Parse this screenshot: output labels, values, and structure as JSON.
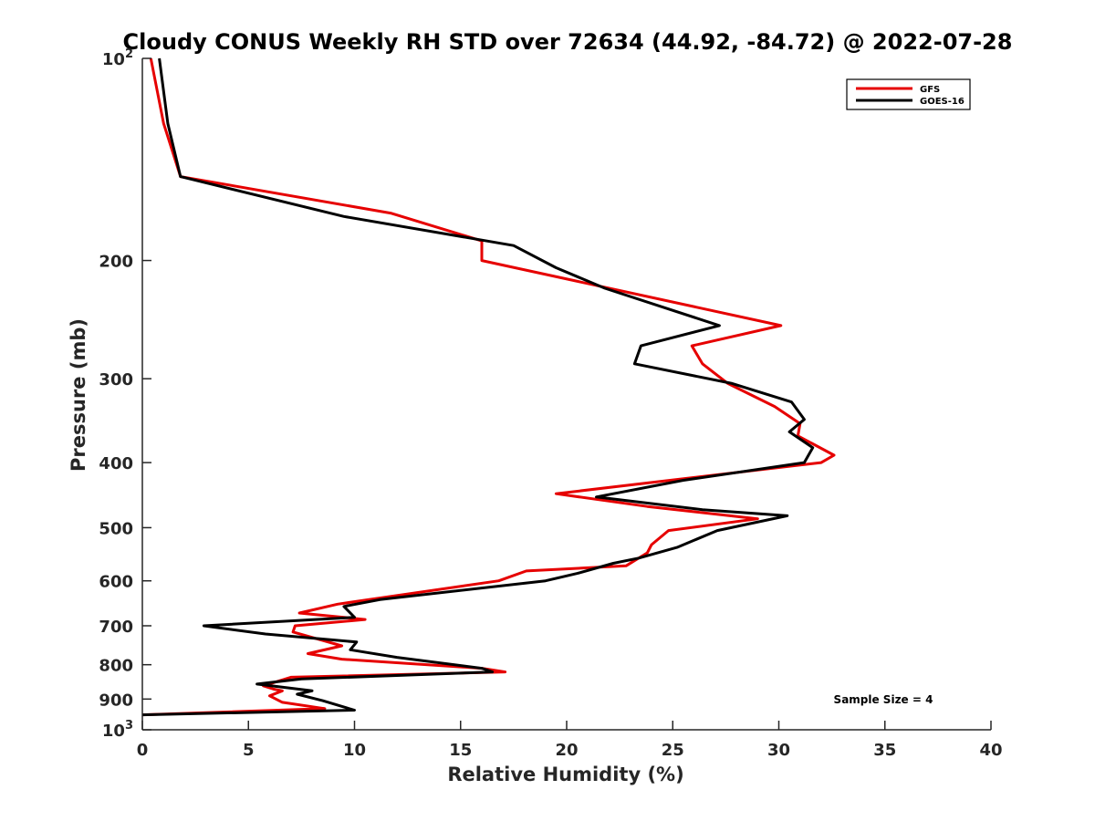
{
  "chart_data": {
    "type": "line",
    "title": "Cloudy CONUS Weekly RH STD over 72634 (44.92, -84.72) @ 2022-07-28",
    "xlabel": "Relative Humidity (%)",
    "ylabel": "Pressure (mb)",
    "xlim": [
      0,
      40
    ],
    "ylim": [
      100,
      1000
    ],
    "y_scale": "log",
    "y_reversed": true,
    "grid": false,
    "legend_position": "top-right",
    "x_ticks": [
      0,
      5,
      10,
      15,
      20,
      25,
      30,
      35,
      40
    ],
    "x_tick_labels": [
      "0",
      "5",
      "10",
      "15",
      "20",
      "25",
      "30",
      "35",
      "40"
    ],
    "y_ticks": [
      100,
      200,
      300,
      400,
      500,
      600,
      700,
      800,
      900,
      1000
    ],
    "y_tick_labels": [
      {
        "base": "10",
        "exp": "2"
      },
      {
        "base": "200",
        "exp": ""
      },
      {
        "base": "300",
        "exp": ""
      },
      {
        "base": "400",
        "exp": ""
      },
      {
        "base": "500",
        "exp": ""
      },
      {
        "base": "600",
        "exp": ""
      },
      {
        "base": "700",
        "exp": ""
      },
      {
        "base": "800",
        "exp": ""
      },
      {
        "base": "900",
        "exp": ""
      },
      {
        "base": "10",
        "exp": "3"
      }
    ],
    "annotation": "Sample Size = 4",
    "series": [
      {
        "name": "GFS",
        "color": "#e60000",
        "points": [
          [
            0.4,
            100
          ],
          [
            1.0,
            125
          ],
          [
            1.8,
            150
          ],
          [
            11.7,
            170
          ],
          [
            16.0,
            187
          ],
          [
            16.0,
            200
          ],
          [
            30.1,
            250
          ],
          [
            25.9,
            268
          ],
          [
            26.4,
            285
          ],
          [
            27.6,
            305
          ],
          [
            29.8,
            330
          ],
          [
            31.0,
            350
          ],
          [
            30.9,
            365
          ],
          [
            32.6,
            390
          ],
          [
            32.0,
            400
          ],
          [
            19.5,
            445
          ],
          [
            23.8,
            465
          ],
          [
            29.0,
            485
          ],
          [
            24.8,
            505
          ],
          [
            24.0,
            530
          ],
          [
            23.8,
            545
          ],
          [
            22.8,
            570
          ],
          [
            18.1,
            580
          ],
          [
            16.8,
            600
          ],
          [
            9.2,
            650
          ],
          [
            7.4,
            670
          ],
          [
            10.5,
            685
          ],
          [
            7.2,
            700
          ],
          [
            7.1,
            715
          ],
          [
            9.4,
            750
          ],
          [
            7.8,
            770
          ],
          [
            9.4,
            785
          ],
          [
            16.0,
            810
          ],
          [
            17.1,
            820
          ],
          [
            7.0,
            835
          ],
          [
            5.7,
            860
          ],
          [
            6.2,
            870
          ],
          [
            6.6,
            875
          ],
          [
            6.0,
            890
          ],
          [
            6.6,
            910
          ],
          [
            8.6,
            930
          ],
          [
            0.0,
            950
          ]
        ]
      },
      {
        "name": "GOES-16",
        "color": "#000000",
        "points": [
          [
            0.8,
            100
          ],
          [
            1.2,
            125
          ],
          [
            1.8,
            150
          ],
          [
            9.5,
            172
          ],
          [
            17.5,
            190
          ],
          [
            19.5,
            205
          ],
          [
            21.8,
            220
          ],
          [
            27.2,
            250
          ],
          [
            23.5,
            268
          ],
          [
            23.2,
            285
          ],
          [
            27.8,
            305
          ],
          [
            30.6,
            325
          ],
          [
            31.2,
            345
          ],
          [
            30.5,
            360
          ],
          [
            31.6,
            380
          ],
          [
            31.2,
            400
          ],
          [
            25.5,
            425
          ],
          [
            21.4,
            450
          ],
          [
            26.4,
            470
          ],
          [
            30.4,
            480
          ],
          [
            27.1,
            505
          ],
          [
            25.2,
            535
          ],
          [
            23.4,
            555
          ],
          [
            22.2,
            565
          ],
          [
            20.5,
            585
          ],
          [
            19.0,
            600
          ],
          [
            11.2,
            640
          ],
          [
            9.5,
            655
          ],
          [
            10.0,
            680
          ],
          [
            2.9,
            700
          ],
          [
            5.8,
            720
          ],
          [
            10.1,
            740
          ],
          [
            9.8,
            760
          ],
          [
            12.0,
            780
          ],
          [
            16.0,
            810
          ],
          [
            16.5,
            820
          ],
          [
            7.5,
            840
          ],
          [
            5.4,
            855
          ],
          [
            8.0,
            875
          ],
          [
            7.3,
            885
          ],
          [
            8.5,
            905
          ],
          [
            10.0,
            935
          ],
          [
            0.0,
            950
          ]
        ]
      }
    ]
  }
}
